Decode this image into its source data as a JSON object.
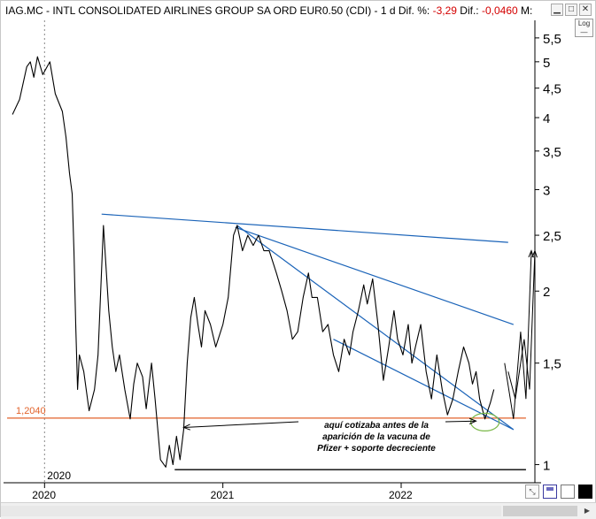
{
  "title": {
    "prefix": "IAG.MC - INTL CONSOLIDATED AIRLINES GROUP SA ORD EUR0.50 (CDI)  -  1 d",
    "dif_pct_label": "Dif. %:",
    "dif_pct_value": "-3,29",
    "dif_label": "Dif.:",
    "dif_value": "-0,0460",
    "trailing": "M:"
  },
  "buttons": {
    "log_label": "Log"
  },
  "colors": {
    "price": "#000000",
    "trendline": "#1a63b8",
    "support": "#e2622a",
    "ellipse": "#7ab848",
    "frame": "#c8c8c8"
  },
  "chart_data": {
    "type": "line",
    "title": "IAG.MC - INTL CONSOLIDATED AIRLINES GROUP SA ORD EUR0.50 (CDI) - 1 d",
    "yscale": "log",
    "ylim": [
      0.93,
      5.9
    ],
    "xlim": [
      2019.77,
      2022.75
    ],
    "y_ticks": [
      "5,5",
      "5",
      "4,5",
      "4",
      "3,5",
      "3",
      "2,5",
      "2",
      "1,5",
      "1"
    ],
    "y_tick_values": [
      5.5,
      5,
      4.5,
      4,
      3.5,
      3,
      2.5,
      2,
      1.5,
      1
    ],
    "x_ticks": [
      "2020",
      "2021",
      "2022"
    ],
    "x_tick_values": [
      2020.0,
      2021.0,
      2022.0
    ],
    "x_year_marker": "2020",
    "series": [
      {
        "x": [
          2019.82,
          2019.86,
          2019.9,
          2019.92,
          2019.94,
          2019.96,
          2019.99,
          2020.03,
          2020.06,
          2020.1,
          2020.12,
          2020.14,
          2020.155,
          2020.165,
          2020.175,
          2020.185,
          2020.195,
          2020.22,
          2020.25,
          2020.28,
          2020.3,
          2020.33,
          2020.36,
          2020.38,
          2020.4,
          2020.42,
          2020.45,
          2020.48,
          2020.5,
          2020.52,
          2020.55,
          2020.57,
          2020.6,
          2020.62,
          2020.65,
          2020.68,
          2020.7,
          2020.72,
          2020.74,
          2020.76,
          2020.78,
          2020.8,
          2020.82,
          2020.84,
          2020.86,
          2020.88,
          2020.9,
          2020.93,
          2020.96,
          2021.0,
          2021.03,
          2021.06,
          2021.08,
          2021.11,
          2021.14,
          2021.17,
          2021.2,
          2021.23,
          2021.26,
          2021.3,
          2021.33,
          2021.36,
          2021.39,
          2021.42,
          2021.45,
          2021.48,
          2021.5,
          2021.53,
          2021.56,
          2021.59,
          2021.62,
          2021.65,
          2021.68,
          2021.71,
          2021.73,
          2021.76,
          2021.79,
          2021.81,
          2021.84,
          2021.87,
          2021.9,
          2021.93,
          2021.96,
          2021.98,
          2022.01,
          2022.04,
          2022.06,
          2022.08,
          2022.11,
          2022.14,
          2022.17,
          2022.2,
          2022.23,
          2022.26,
          2022.29,
          2022.32,
          2022.35,
          2022.38,
          2022.4,
          2022.42,
          2022.44,
          2022.47,
          2022.5,
          2022.52
        ],
        "y": [
          4.05,
          4.3,
          4.9,
          5.0,
          4.7,
          5.1,
          4.75,
          5.0,
          4.4,
          4.1,
          3.7,
          3.2,
          2.95,
          2.35,
          1.75,
          1.35,
          1.55,
          1.45,
          1.24,
          1.35,
          1.55,
          2.6,
          1.85,
          1.6,
          1.45,
          1.55,
          1.35,
          1.2,
          1.38,
          1.5,
          1.42,
          1.25,
          1.5,
          1.3,
          1.02,
          0.99,
          1.08,
          1.0,
          1.12,
          1.02,
          1.15,
          1.5,
          1.8,
          1.95,
          1.75,
          1.6,
          1.85,
          1.75,
          1.6,
          1.75,
          1.95,
          2.5,
          2.6,
          2.35,
          2.5,
          2.4,
          2.5,
          2.35,
          2.35,
          2.15,
          2.0,
          1.85,
          1.65,
          1.7,
          1.95,
          2.15,
          1.95,
          1.95,
          1.7,
          1.75,
          1.55,
          1.45,
          1.65,
          1.55,
          1.7,
          1.85,
          2.05,
          1.9,
          2.1,
          1.75,
          1.4,
          1.6,
          1.85,
          1.65,
          1.55,
          1.75,
          1.5,
          1.6,
          1.75,
          1.45,
          1.3,
          1.55,
          1.35,
          1.22,
          1.3,
          1.45,
          1.6,
          1.5,
          1.38,
          1.45,
          1.3,
          1.2,
          1.28,
          1.35
        ]
      }
    ],
    "trendlines": [
      {
        "name": "upper-resistance",
        "x": [
          2020.32,
          2022.6
        ],
        "y": [
          2.72,
          2.43
        ]
      },
      {
        "name": "channel-top",
        "x": [
          2021.07,
          2022.63
        ],
        "y": [
          2.58,
          1.75
        ]
      },
      {
        "name": "channel-bottom",
        "x": [
          2021.08,
          2022.63
        ],
        "y": [
          2.6,
          1.15
        ]
      },
      {
        "name": "channel-bottom-low",
        "x": [
          2021.62,
          2022.63
        ],
        "y": [
          1.65,
          1.15
        ]
      }
    ],
    "scenario_arrows": [
      {
        "x": [
          2022.58,
          2022.63,
          2022.67,
          2022.7,
          2022.73
        ],
        "y": [
          1.5,
          1.2,
          1.7,
          1.3,
          2.35
        ]
      },
      {
        "x": [
          2022.6,
          2022.64,
          2022.69,
          2022.72,
          2022.75
        ],
        "y": [
          1.45,
          1.3,
          1.65,
          1.35,
          2.35
        ]
      }
    ],
    "hlines": [
      {
        "name": "support",
        "y": 1.204,
        "label": "1,2040",
        "x_from": 2019.79,
        "x_to": 2022.7
      },
      {
        "name": "floor",
        "y": 0.98,
        "x_from": 2020.73,
        "x_to": 2022.7
      }
    ],
    "ellipse_highlight": {
      "x": 2022.47,
      "y": 1.185
    },
    "annotation": {
      "lines": [
        "aquí cotizaba antes de la",
        "aparición de la vacuna de",
        "Pfizer + soporte decreciente"
      ],
      "arrow_to_left": {
        "x": 2020.78,
        "y": 1.16
      },
      "arrow_to_right": {
        "x": 2022.42,
        "y": 1.19
      }
    }
  }
}
